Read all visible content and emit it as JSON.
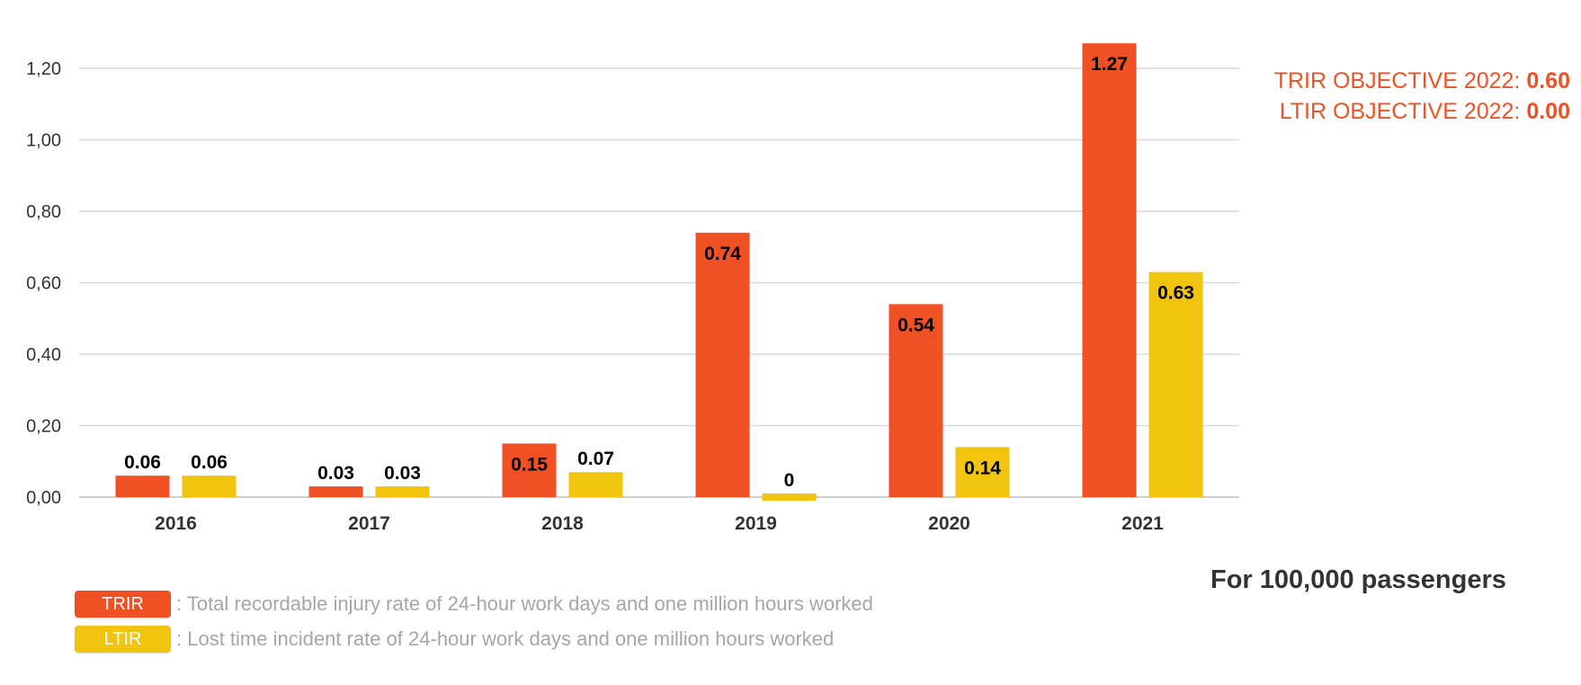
{
  "chart_data": {
    "type": "bar",
    "categories": [
      "2016",
      "2017",
      "2018",
      "2019",
      "2020",
      "2021"
    ],
    "series": [
      {
        "name": "TRIR",
        "color": "#f05124",
        "values": [
          0.06,
          0.03,
          0.15,
          0.74,
          0.54,
          1.27
        ],
        "labels": [
          "0.06",
          "0.03",
          "0.15",
          "0.74",
          "0.54",
          "1.27"
        ]
      },
      {
        "name": "LTIR",
        "color": "#f1c40f",
        "values": [
          0.06,
          0.03,
          0.07,
          0,
          0.14,
          0.63
        ],
        "labels": [
          "0.06",
          "0.03",
          "0.07",
          "0",
          "0.14",
          "0.63"
        ]
      }
    ],
    "ylim": [
      0,
      1.2
    ],
    "yticks": [
      0,
      0.2,
      0.4,
      0.6,
      0.8,
      1.0,
      1.2
    ],
    "ytick_labels": [
      "0,00",
      "0,20",
      "0,40",
      "0,60",
      "0,80",
      "1,00",
      "1,20"
    ],
    "grid": true,
    "legend": [
      {
        "label": "TRIR",
        "description": ": Total recordable injury rate of 24-hour work days and one million hours worked",
        "color": "#f05124"
      },
      {
        "label": "LTIR",
        "description": ": Lost time incident rate of 24-hour work days and one million hours worked",
        "color": "#f1c40f"
      }
    ],
    "legend_placement": "bottom-left"
  },
  "objectives": {
    "trir_label": "TRIR OBJECTIVE 2022: ",
    "trir_value": "0.60",
    "ltir_label": "LTIR OBJECTIVE 2022: ",
    "ltir_value": "0.00"
  },
  "note": "For 100,000 passengers"
}
